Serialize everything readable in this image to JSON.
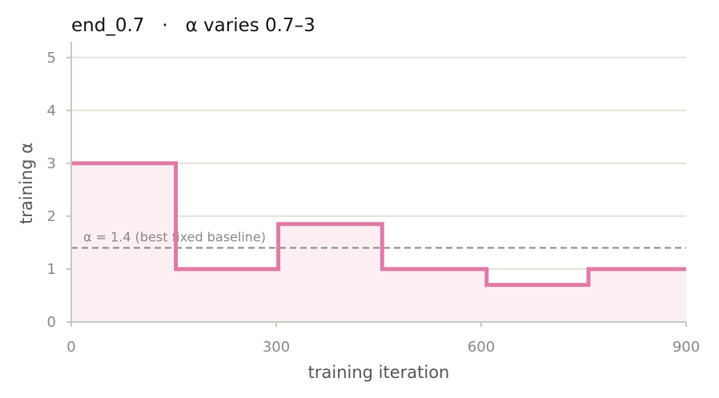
{
  "chart_data": {
    "type": "line",
    "step": true,
    "title": "end_0.7   ·   α varies 0.7–3",
    "xlabel": "training iteration",
    "ylabel": "training α",
    "xlim": [
      0,
      900
    ],
    "ylim": [
      0,
      5.3
    ],
    "x_ticks": [
      0,
      300,
      600,
      900
    ],
    "y_ticks": [
      0,
      1,
      2,
      3,
      4,
      5
    ],
    "grid": "horizontal",
    "filled_under_line": true,
    "series": [
      {
        "color": "#e07aa6",
        "x": [
          0,
          153,
          153,
          303,
          303,
          455,
          455,
          608,
          608,
          757,
          757,
          900
        ],
        "y": [
          3.0,
          3.0,
          1.0,
          1.0,
          1.85,
          1.85,
          1.0,
          1.0,
          0.7,
          0.7,
          1.0,
          1.0
        ]
      }
    ],
    "reference_line": {
      "y": 1.4,
      "label": "α = 1.4 (best fixed baseline)",
      "style": "dashed",
      "color": "#888888"
    },
    "colors": {
      "line": "#e07aa6",
      "fill": "#fbeff4",
      "grid": "#e3e3d8",
      "axis": "#c8c8c0"
    }
  }
}
